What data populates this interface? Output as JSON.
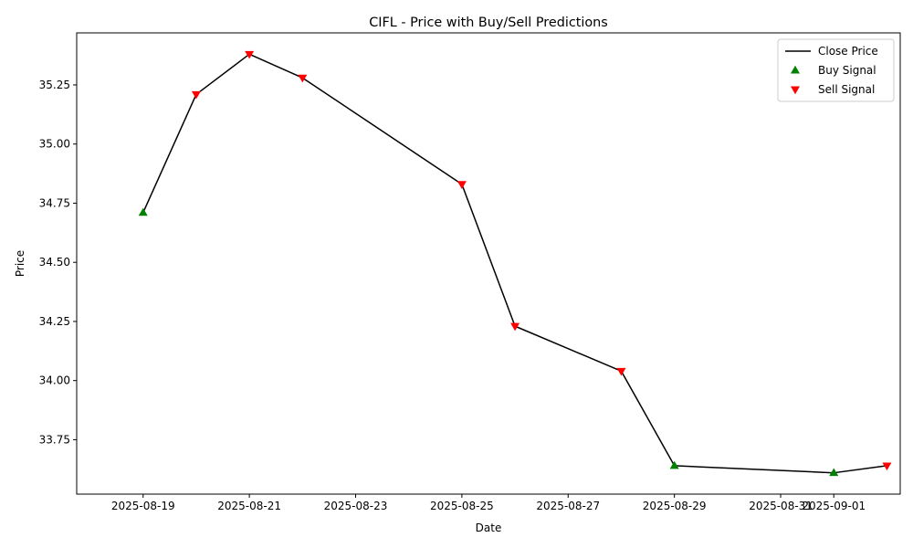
{
  "chart_data": {
    "type": "line",
    "title": "CIFL - Price with Buy/Sell Predictions",
    "xlabel": "Date",
    "ylabel": "Price",
    "x_ticks": [
      "2025-08-19",
      "2025-08-21",
      "2025-08-23",
      "2025-08-25",
      "2025-08-27",
      "2025-08-29",
      "2025-08-31",
      "2025-09-01"
    ],
    "y_ticks": [
      33.75,
      34.0,
      34.25,
      34.5,
      34.75,
      35.0,
      35.25
    ],
    "xlim": [
      "2025-08-18",
      "2025-09-02"
    ],
    "ylim": [
      33.52,
      35.47
    ],
    "grid": false,
    "legend_position": "top-right",
    "series": [
      {
        "name": "Close Price",
        "kind": "line",
        "color": "#000000",
        "points": [
          {
            "x": "2025-08-19",
            "y": 34.71
          },
          {
            "x": "2025-08-20",
            "y": 35.21
          },
          {
            "x": "2025-08-21",
            "y": 35.38
          },
          {
            "x": "2025-08-22",
            "y": 35.28
          },
          {
            "x": "2025-08-25",
            "y": 34.83
          },
          {
            "x": "2025-08-26",
            "y": 34.23
          },
          {
            "x": "2025-08-28",
            "y": 34.04
          },
          {
            "x": "2025-08-29",
            "y": 33.64
          },
          {
            "x": "2025-09-01",
            "y": 33.61
          },
          {
            "x": "2025-09-02",
            "y": 33.64
          }
        ]
      },
      {
        "name": "Buy Signal",
        "kind": "marker-up",
        "color": "#008000",
        "points": [
          {
            "x": "2025-08-19",
            "y": 34.71
          },
          {
            "x": "2025-08-29",
            "y": 33.64
          },
          {
            "x": "2025-09-01",
            "y": 33.61
          }
        ]
      },
      {
        "name": "Sell Signal",
        "kind": "marker-down",
        "color": "#ff0000",
        "points": [
          {
            "x": "2025-08-20",
            "y": 35.21
          },
          {
            "x": "2025-08-21",
            "y": 35.38
          },
          {
            "x": "2025-08-22",
            "y": 35.28
          },
          {
            "x": "2025-08-25",
            "y": 34.83
          },
          {
            "x": "2025-08-26",
            "y": 34.23
          },
          {
            "x": "2025-08-28",
            "y": 34.04
          },
          {
            "x": "2025-09-02",
            "y": 33.64
          }
        ]
      }
    ]
  }
}
